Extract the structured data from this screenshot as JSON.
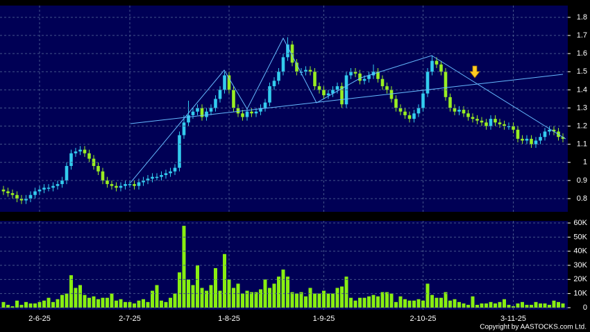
{
  "chart_data": [
    {
      "type": "candlestick",
      "up_color": "#33ccee",
      "down_color": "#99ee22",
      "grid": true,
      "ylim": [
        0.727,
        1.865
      ],
      "yticks": [
        0.8,
        0.9,
        1,
        1.1,
        1.2,
        1.3,
        1.4,
        1.5,
        1.6,
        1.7,
        1.8
      ],
      "open": [
        0.85,
        0.84,
        0.83,
        0.82,
        0.8,
        0.79,
        0.8,
        0.82,
        0.84,
        0.85,
        0.86,
        0.86,
        0.87,
        0.88,
        0.9,
        0.98,
        1.05,
        1.06,
        1.07,
        1.05,
        1.02,
        0.98,
        0.95,
        0.9,
        0.88,
        0.87,
        0.86,
        0.87,
        0.88,
        0.88,
        0.87,
        0.89,
        0.9,
        0.91,
        0.92,
        0.92,
        0.93,
        0.94,
        0.95,
        0.97,
        1.15,
        1.22,
        1.26,
        1.28,
        1.3,
        1.25,
        1.28,
        1.3,
        1.35,
        1.4,
        1.48,
        1.4,
        1.3,
        1.27,
        1.25,
        1.28,
        1.27,
        1.28,
        1.3,
        1.33,
        1.42,
        1.45,
        1.5,
        1.58,
        1.65,
        1.55,
        1.5,
        1.5,
        1.51,
        1.5,
        1.42,
        1.4,
        1.37,
        1.38,
        1.4,
        1.42,
        1.32,
        1.48,
        1.5,
        1.49,
        1.45,
        1.46,
        1.48,
        1.5,
        1.46,
        1.42,
        1.4,
        1.35,
        1.3,
        1.28,
        1.26,
        1.24,
        1.27,
        1.3,
        1.38,
        1.5,
        1.56,
        1.54,
        1.5,
        1.36,
        1.3,
        1.28,
        1.29,
        1.27,
        1.25,
        1.24,
        1.23,
        1.22,
        1.2,
        1.24,
        1.22,
        1.21,
        1.2,
        1.2,
        1.18,
        1.13,
        1.12,
        1.13,
        1.1,
        1.12,
        1.14,
        1.17,
        1.18,
        1.17,
        1.14
      ],
      "high": [
        0.87,
        0.86,
        0.85,
        0.84,
        0.82,
        0.82,
        0.84,
        0.86,
        0.87,
        0.88,
        0.88,
        0.89,
        0.9,
        0.92,
        1.0,
        1.07,
        1.08,
        1.09,
        1.09,
        1.07,
        1.04,
        1.0,
        0.97,
        0.92,
        0.9,
        0.89,
        0.89,
        0.9,
        0.9,
        0.9,
        0.91,
        0.92,
        0.93,
        0.94,
        0.94,
        0.95,
        0.96,
        0.97,
        0.99,
        1.17,
        1.26,
        1.34,
        1.3,
        1.32,
        1.32,
        1.3,
        1.32,
        1.37,
        1.42,
        1.5,
        1.5,
        1.42,
        1.32,
        1.29,
        1.3,
        1.3,
        1.3,
        1.32,
        1.35,
        1.44,
        1.47,
        1.52,
        1.6,
        1.69,
        1.67,
        1.57,
        1.52,
        1.53,
        1.53,
        1.52,
        1.44,
        1.42,
        1.4,
        1.42,
        1.44,
        1.44,
        1.5,
        1.52,
        1.52,
        1.51,
        1.48,
        1.5,
        1.54,
        1.52,
        1.48,
        1.44,
        1.42,
        1.37,
        1.32,
        1.3,
        1.28,
        1.29,
        1.32,
        1.4,
        1.52,
        1.59,
        1.58,
        1.56,
        1.52,
        1.38,
        1.32,
        1.31,
        1.31,
        1.29,
        1.27,
        1.26,
        1.25,
        1.24,
        1.26,
        1.26,
        1.24,
        1.23,
        1.22,
        1.22,
        1.2,
        1.15,
        1.15,
        1.15,
        1.14,
        1.16,
        1.19,
        1.2,
        1.2,
        1.19,
        1.16
      ],
      "low": [
        0.82,
        0.81,
        0.8,
        0.78,
        0.77,
        0.77,
        0.78,
        0.8,
        0.82,
        0.83,
        0.84,
        0.84,
        0.85,
        0.86,
        0.88,
        0.96,
        1.03,
        1.04,
        1.03,
        1.0,
        0.96,
        0.93,
        0.88,
        0.86,
        0.85,
        0.84,
        0.84,
        0.85,
        0.86,
        0.85,
        0.85,
        0.87,
        0.88,
        0.89,
        0.9,
        0.9,
        0.91,
        0.92,
        0.93,
        0.95,
        1.13,
        1.2,
        1.24,
        1.26,
        1.23,
        1.23,
        1.26,
        1.28,
        1.33,
        1.38,
        1.38,
        1.28,
        1.25,
        1.23,
        1.23,
        1.25,
        1.25,
        1.26,
        1.28,
        1.31,
        1.4,
        1.43,
        1.48,
        1.56,
        1.53,
        1.48,
        1.48,
        1.48,
        1.48,
        1.4,
        1.38,
        1.35,
        1.35,
        1.36,
        1.38,
        1.3,
        1.3,
        1.46,
        1.47,
        1.43,
        1.43,
        1.44,
        1.46,
        1.44,
        1.4,
        1.38,
        1.33,
        1.28,
        1.26,
        1.24,
        1.22,
        1.22,
        1.25,
        1.28,
        1.36,
        1.48,
        1.52,
        1.48,
        1.34,
        1.28,
        1.26,
        1.26,
        1.25,
        1.23,
        1.22,
        1.21,
        1.2,
        1.18,
        1.18,
        1.2,
        1.19,
        1.18,
        1.18,
        1.16,
        1.11,
        1.1,
        1.1,
        1.08,
        1.08,
        1.1,
        1.12,
        1.15,
        1.15,
        1.12,
        1.11
      ],
      "close": [
        0.84,
        0.83,
        0.82,
        0.8,
        0.79,
        0.8,
        0.82,
        0.84,
        0.85,
        0.86,
        0.86,
        0.87,
        0.88,
        0.9,
        0.98,
        1.05,
        1.06,
        1.07,
        1.05,
        1.02,
        0.98,
        0.95,
        0.9,
        0.88,
        0.87,
        0.86,
        0.87,
        0.88,
        0.88,
        0.87,
        0.89,
        0.9,
        0.91,
        0.92,
        0.92,
        0.93,
        0.94,
        0.95,
        0.97,
        1.15,
        1.22,
        1.26,
        1.28,
        1.3,
        1.25,
        1.28,
        1.3,
        1.35,
        1.4,
        1.48,
        1.4,
        1.3,
        1.27,
        1.25,
        1.28,
        1.27,
        1.28,
        1.3,
        1.33,
        1.42,
        1.45,
        1.5,
        1.58,
        1.65,
        1.55,
        1.5,
        1.5,
        1.51,
        1.5,
        1.42,
        1.4,
        1.37,
        1.38,
        1.4,
        1.42,
        1.32,
        1.48,
        1.5,
        1.49,
        1.45,
        1.46,
        1.48,
        1.5,
        1.46,
        1.42,
        1.4,
        1.35,
        1.3,
        1.28,
        1.26,
        1.24,
        1.27,
        1.3,
        1.38,
        1.5,
        1.56,
        1.54,
        1.5,
        1.36,
        1.3,
        1.28,
        1.29,
        1.27,
        1.25,
        1.24,
        1.23,
        1.22,
        1.2,
        1.24,
        1.22,
        1.21,
        1.2,
        1.2,
        1.18,
        1.13,
        1.12,
        1.13,
        1.1,
        1.12,
        1.14,
        1.17,
        1.18,
        1.17,
        1.14,
        1.13
      ]
    },
    {
      "type": "bar",
      "color": "#88ee11",
      "grid": true,
      "ylim": [
        -1500,
        61500
      ],
      "yticks": [
        0,
        {
          "value": 10000,
          "label": "10K"
        },
        {
          "value": 20000,
          "label": "20K"
        },
        {
          "value": 30000,
          "label": "30K"
        },
        {
          "value": 40000,
          "label": "40K"
        },
        {
          "value": 50000,
          "label": "50K"
        },
        {
          "value": 60000,
          "label": "60K"
        }
      ],
      "categories": [
        null,
        null,
        null,
        null,
        null,
        null,
        null,
        null,
        "2-6-25",
        null,
        null,
        null,
        null,
        null,
        null,
        null,
        null,
        null,
        null,
        null,
        null,
        null,
        null,
        null,
        null,
        null,
        null,
        null,
        "2-7-25",
        null,
        null,
        null,
        null,
        null,
        null,
        null,
        null,
        null,
        null,
        null,
        null,
        null,
        null,
        null,
        null,
        null,
        null,
        null,
        null,
        null,
        "1-8-25",
        null,
        null,
        null,
        null,
        null,
        null,
        null,
        null,
        null,
        null,
        null,
        null,
        null,
        null,
        null,
        null,
        null,
        null,
        null,
        null,
        "1-9-25",
        null,
        null,
        null,
        null,
        null,
        null,
        null,
        null,
        null,
        null,
        null,
        null,
        null,
        null,
        null,
        null,
        null,
        null,
        null,
        null,
        null,
        "2-10-25",
        null,
        null,
        null,
        null,
        null,
        null,
        null,
        null,
        null,
        null,
        null,
        null,
        null,
        null,
        null,
        null,
        null,
        null,
        null,
        "3-11-25",
        null,
        null,
        null,
        null,
        null,
        null,
        null,
        null,
        null,
        null,
        null
      ],
      "values": [
        4000,
        2000,
        1000,
        5000,
        2000,
        4000,
        3000,
        3000,
        4000,
        5000,
        7000,
        4000,
        6000,
        9000,
        10000,
        23000,
        14000,
        16000,
        9000,
        7000,
        8000,
        6000,
        7000,
        7000,
        10000,
        5000,
        6000,
        4000,
        4000,
        3000,
        5000,
        6000,
        4000,
        12000,
        16000,
        5000,
        4000,
        7000,
        10000,
        25000,
        58000,
        20000,
        16000,
        30000,
        14000,
        12000,
        16000,
        28000,
        12000,
        38000,
        20000,
        14000,
        17000,
        10000,
        12000,
        11000,
        11000,
        13000,
        20000,
        14000,
        17000,
        22000,
        27000,
        22000,
        11000,
        10000,
        11000,
        8000,
        14000,
        10000,
        10000,
        12000,
        10000,
        10000,
        14000,
        15000,
        22000,
        7000,
        5000,
        7000,
        7000,
        8000,
        9000,
        8000,
        11000,
        11000,
        10000,
        4000,
        8000,
        6000,
        5000,
        5000,
        6000,
        5000,
        17000,
        9000,
        7000,
        7000,
        11000,
        5000,
        6000,
        4000,
        3000,
        2000,
        8000,
        2000,
        3000,
        3000,
        4000,
        3000,
        4000,
        6000,
        2000,
        1000,
        3000,
        4000,
        2000,
        2000,
        4000,
        3000,
        3000,
        2000,
        5000,
        4000,
        3000
      ]
    }
  ],
  "copyright": "Copyright by AASTOCKS.com Ltd."
}
